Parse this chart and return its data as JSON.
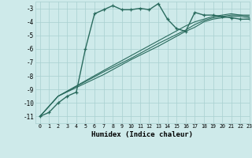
{
  "xlabel": "Humidex (Indice chaleur)",
  "bg_color": "#ceeaea",
  "grid_color": "#a8d0d0",
  "line_color": "#2a6b5e",
  "xlim": [
    -0.5,
    23
  ],
  "ylim": [
    -11.5,
    -2.5
  ],
  "yticks": [
    -11,
    -10,
    -9,
    -8,
    -7,
    -6,
    -5,
    -4,
    -3
  ],
  "xticks": [
    0,
    1,
    2,
    3,
    4,
    5,
    6,
    7,
    8,
    9,
    10,
    11,
    12,
    13,
    14,
    15,
    16,
    17,
    18,
    19,
    20,
    21,
    22,
    23
  ],
  "series": [
    {
      "x": [
        0,
        1,
        2,
        3,
        4,
        5,
        6,
        7,
        8,
        9,
        10,
        11,
        12,
        13,
        14,
        15,
        16,
        17,
        18,
        19,
        20,
        21,
        22,
        23
      ],
      "y": [
        -11,
        -10.7,
        -10,
        -9.5,
        -9.2,
        -6.0,
        -3.4,
        -3.1,
        -2.8,
        -3.1,
        -3.1,
        -3.0,
        -3.1,
        -2.65,
        -3.8,
        -4.5,
        -4.7,
        -3.3,
        -3.5,
        -3.5,
        -3.6,
        -3.7,
        -3.8,
        -3.8
      ],
      "marker": "+",
      "lw": 1.0,
      "ms": 3.5
    },
    {
      "x": [
        0,
        2,
        7,
        10,
        13,
        16,
        17,
        18,
        19,
        20,
        21,
        22,
        23
      ],
      "y": [
        -11,
        -9.5,
        -7.7,
        -6.7,
        -5.6,
        -4.6,
        -4.2,
        -3.9,
        -3.7,
        -3.6,
        -3.5,
        -3.5,
        -3.6
      ],
      "marker": null,
      "lw": 0.8
    },
    {
      "x": [
        0,
        2,
        7,
        10,
        13,
        16,
        17,
        18,
        19,
        20,
        21,
        22,
        23
      ],
      "y": [
        -11,
        -9.5,
        -7.9,
        -6.8,
        -5.8,
        -4.7,
        -4.4,
        -4.0,
        -3.8,
        -3.7,
        -3.6,
        -3.6,
        -3.7
      ],
      "marker": null,
      "lw": 0.8
    },
    {
      "x": [
        0,
        2,
        7,
        10,
        13,
        16,
        17,
        18,
        19,
        20,
        21,
        22,
        23
      ],
      "y": [
        -11,
        -9.5,
        -7.6,
        -6.5,
        -5.4,
        -4.3,
        -4.0,
        -3.8,
        -3.6,
        -3.5,
        -3.4,
        -3.5,
        -3.5
      ],
      "marker": null,
      "lw": 0.8
    }
  ]
}
